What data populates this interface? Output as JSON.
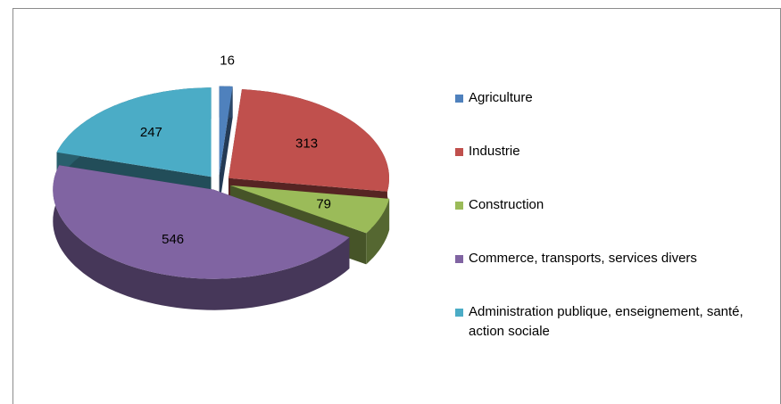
{
  "chart_data": {
    "type": "pie3d",
    "categories": [
      "Agriculture",
      "Industrie",
      "Construction",
      "Commerce, transports, services divers",
      "Administration publique, enseignement, santé, action sociale"
    ],
    "values": [
      16,
      313,
      79,
      546,
      247
    ],
    "colors": [
      "#4f81bd",
      "#c0504d",
      "#9bbb59",
      "#8064a2",
      "#4bacc6"
    ],
    "legend": "right"
  }
}
